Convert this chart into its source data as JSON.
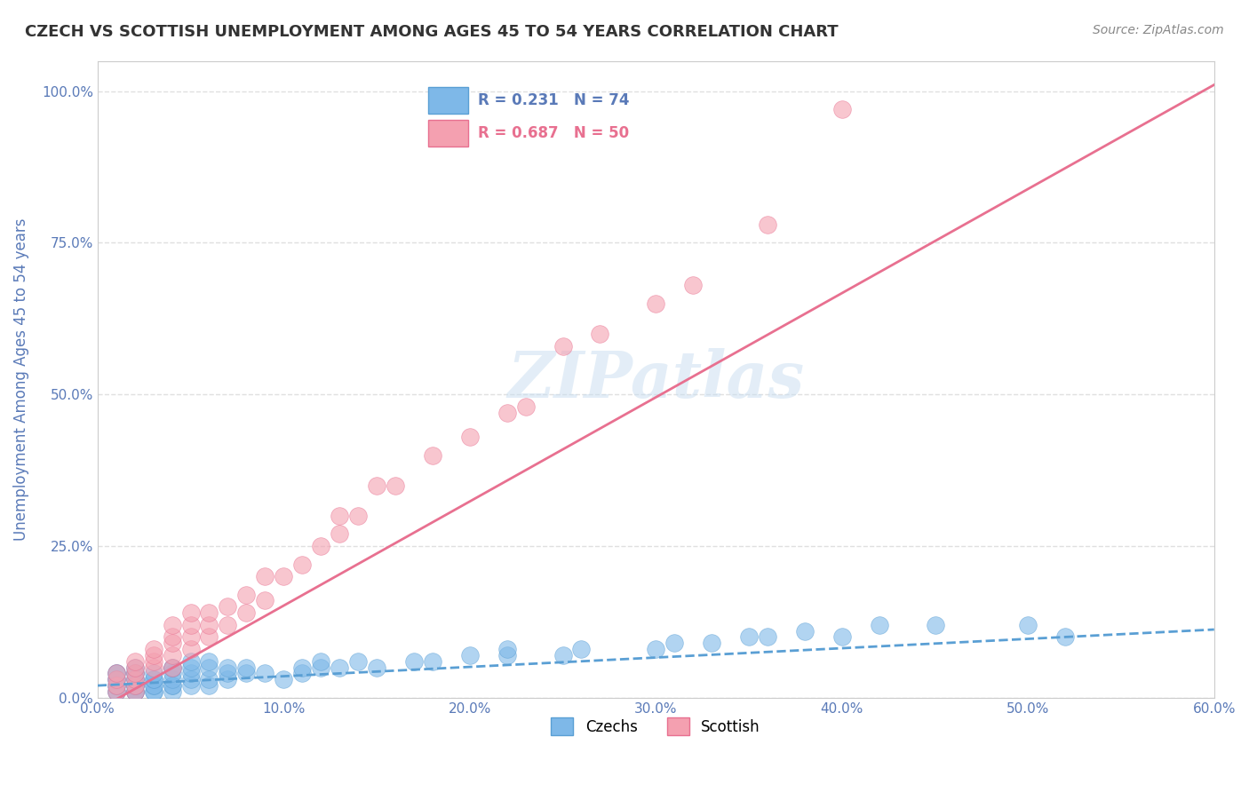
{
  "title": "CZECH VS SCOTTISH UNEMPLOYMENT AMONG AGES 45 TO 54 YEARS CORRELATION CHART",
  "source": "Source: ZipAtlas.com",
  "ylabel": "Unemployment Among Ages 45 to 54 years",
  "xlabel": "",
  "xlim": [
    0.0,
    0.6
  ],
  "ylim": [
    0.0,
    1.05
  ],
  "xticks": [
    0.0,
    0.1,
    0.2,
    0.3,
    0.4,
    0.5,
    0.6
  ],
  "xticklabels": [
    "0.0%",
    "10.0%",
    "20.0%",
    "30.0%",
    "40.0%",
    "50.0%",
    "60.0%"
  ],
  "yticks": [
    0.0,
    0.25,
    0.5,
    0.75,
    1.0
  ],
  "yticklabels": [
    "0.0%",
    "25.0%",
    "50.0%",
    "75.0%",
    "100.0%"
  ],
  "czech_R": 0.231,
  "czech_N": 74,
  "scottish_R": 0.687,
  "scottish_N": 50,
  "czech_color": "#7eb8e8",
  "scottish_color": "#f4a0b0",
  "czech_line_color": "#5a9fd4",
  "scottish_line_color": "#e87090",
  "watermark": "ZIPatlas",
  "watermark_color": "#c8ddf0",
  "background_color": "#ffffff",
  "grid_color": "#e0e0e0",
  "axis_label_color": "#5a7ab8",
  "czech_scatter_x": [
    0.01,
    0.01,
    0.01,
    0.01,
    0.01,
    0.01,
    0.01,
    0.01,
    0.02,
    0.02,
    0.02,
    0.02,
    0.02,
    0.02,
    0.02,
    0.02,
    0.02,
    0.02,
    0.02,
    0.03,
    0.03,
    0.03,
    0.03,
    0.03,
    0.03,
    0.03,
    0.04,
    0.04,
    0.04,
    0.04,
    0.04,
    0.04,
    0.04,
    0.05,
    0.05,
    0.05,
    0.05,
    0.05,
    0.06,
    0.06,
    0.06,
    0.06,
    0.07,
    0.07,
    0.07,
    0.08,
    0.08,
    0.09,
    0.1,
    0.11,
    0.11,
    0.12,
    0.12,
    0.13,
    0.14,
    0.15,
    0.17,
    0.18,
    0.2,
    0.22,
    0.22,
    0.25,
    0.26,
    0.3,
    0.31,
    0.33,
    0.35,
    0.36,
    0.38,
    0.4,
    0.42,
    0.45,
    0.5,
    0.52
  ],
  "czech_scatter_y": [
    0.01,
    0.01,
    0.02,
    0.02,
    0.03,
    0.03,
    0.04,
    0.04,
    0.01,
    0.01,
    0.01,
    0.02,
    0.02,
    0.02,
    0.03,
    0.03,
    0.04,
    0.04,
    0.05,
    0.01,
    0.01,
    0.02,
    0.02,
    0.03,
    0.03,
    0.04,
    0.01,
    0.02,
    0.02,
    0.03,
    0.04,
    0.05,
    0.05,
    0.02,
    0.03,
    0.04,
    0.05,
    0.06,
    0.02,
    0.03,
    0.05,
    0.06,
    0.03,
    0.04,
    0.05,
    0.04,
    0.05,
    0.04,
    0.03,
    0.04,
    0.05,
    0.05,
    0.06,
    0.05,
    0.06,
    0.05,
    0.06,
    0.06,
    0.07,
    0.07,
    0.08,
    0.07,
    0.08,
    0.08,
    0.09,
    0.09,
    0.1,
    0.1,
    0.11,
    0.1,
    0.12,
    0.12,
    0.12,
    0.1
  ],
  "scottish_scatter_x": [
    0.01,
    0.01,
    0.01,
    0.01,
    0.02,
    0.02,
    0.02,
    0.02,
    0.02,
    0.02,
    0.03,
    0.03,
    0.03,
    0.03,
    0.04,
    0.04,
    0.04,
    0.04,
    0.04,
    0.05,
    0.05,
    0.05,
    0.05,
    0.06,
    0.06,
    0.06,
    0.07,
    0.07,
    0.08,
    0.08,
    0.09,
    0.09,
    0.1,
    0.11,
    0.12,
    0.13,
    0.13,
    0.14,
    0.15,
    0.16,
    0.18,
    0.2,
    0.22,
    0.23,
    0.25,
    0.27,
    0.3,
    0.32,
    0.36,
    0.4
  ],
  "scottish_scatter_y": [
    0.01,
    0.02,
    0.03,
    0.04,
    0.01,
    0.02,
    0.03,
    0.04,
    0.05,
    0.06,
    0.05,
    0.06,
    0.07,
    0.08,
    0.05,
    0.07,
    0.09,
    0.1,
    0.12,
    0.08,
    0.1,
    0.12,
    0.14,
    0.1,
    0.12,
    0.14,
    0.12,
    0.15,
    0.14,
    0.17,
    0.16,
    0.2,
    0.2,
    0.22,
    0.25,
    0.27,
    0.3,
    0.3,
    0.35,
    0.35,
    0.4,
    0.43,
    0.47,
    0.48,
    0.58,
    0.6,
    0.65,
    0.68,
    0.78,
    0.97
  ]
}
